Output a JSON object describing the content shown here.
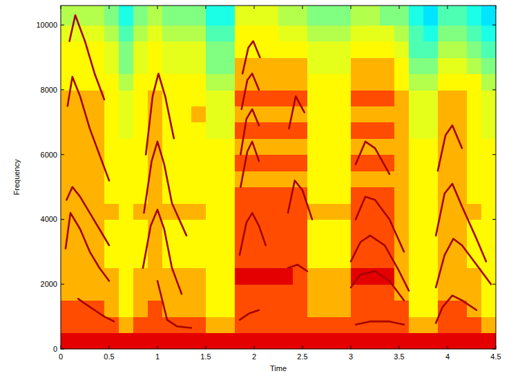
{
  "chart_data": {
    "type": "heatmap",
    "x_label": "Time",
    "y_label": "Frequency",
    "xlim": [
      0,
      4.5
    ],
    "ylim": [
      0,
      10600
    ],
    "xticks": [
      0,
      0.5,
      1,
      1.5,
      2,
      2.5,
      3,
      3.5,
      4,
      4.5
    ],
    "yticks": [
      0,
      2000,
      4000,
      6000,
      8000,
      10000
    ],
    "x_edges": [
      0,
      0.15,
      0.3,
      0.45,
      0.6,
      0.75,
      0.9,
      1.05,
      1.2,
      1.35,
      1.5,
      1.65,
      1.8,
      1.95,
      2.1,
      2.25,
      2.4,
      2.55,
      2.7,
      2.85,
      3,
      3.15,
      3.3,
      3.45,
      3.6,
      3.75,
      3.9,
      4.05,
      4.2,
      4.35,
      4.5
    ],
    "y_edges": [
      0,
      500,
      1000,
      1500,
      2000,
      2500,
      3000,
      3500,
      4000,
      4500,
      5000,
      5500,
      6000,
      6500,
      7000,
      7500,
      8000,
      8500,
      9000,
      9500,
      10000,
      10600
    ],
    "clim": [
      0,
      10
    ],
    "cells": [
      [
        9,
        9,
        9,
        9,
        9,
        9,
        9,
        9,
        9,
        9,
        9,
        9,
        9,
        9,
        9,
        9,
        9,
        9,
        9,
        9,
        9,
        9,
        9,
        9,
        9,
        9,
        9,
        9,
        9,
        9
      ],
      [
        8,
        8,
        8,
        8,
        7,
        8,
        8,
        8,
        8,
        8,
        7,
        7,
        8,
        8,
        8,
        8,
        8,
        8,
        8,
        8,
        8,
        8,
        8,
        8,
        7,
        7,
        8,
        8,
        8,
        7
      ],
      [
        8,
        8,
        8,
        7,
        6.3,
        7,
        8,
        7,
        7,
        7,
        6.3,
        6.3,
        8,
        8,
        8,
        8,
        8,
        7,
        7,
        7,
        8,
        8,
        8,
        8,
        6.3,
        6.3,
        8,
        8,
        7,
        6.3
      ],
      [
        7,
        7,
        7,
        7,
        6.3,
        7,
        7,
        7,
        7,
        7,
        6.3,
        6.3,
        8,
        8,
        8,
        8,
        8,
        7,
        7,
        7,
        8,
        8,
        8,
        7,
        6.3,
        6.3,
        7,
        7,
        7,
        6.3
      ],
      [
        7,
        7,
        7,
        7,
        6.3,
        7,
        7,
        7,
        7,
        7,
        6.3,
        6.3,
        9,
        9,
        9,
        9,
        8,
        7,
        7,
        7,
        9,
        9,
        9,
        7,
        6.3,
        6.3,
        7,
        7,
        7,
        6.3
      ],
      [
        7,
        7,
        7,
        6.3,
        6.3,
        6.3,
        7,
        6.3,
        6.3,
        6.3,
        6.3,
        6.3,
        8,
        8,
        8,
        8,
        8,
        6.3,
        6.3,
        6.3,
        8,
        8,
        8,
        7,
        6.3,
        6.3,
        7,
        7,
        6.3,
        6.3
      ],
      [
        7,
        7,
        7,
        6.3,
        6.3,
        6.3,
        7,
        6.3,
        6.3,
        6.3,
        6.3,
        6.3,
        8,
        8,
        8,
        8,
        8,
        6.3,
        6.3,
        6.3,
        8,
        8,
        8,
        7,
        6.3,
        6.3,
        7,
        7,
        6.3,
        6.3
      ],
      [
        7,
        7,
        7,
        6.3,
        6.3,
        6.3,
        7,
        6.3,
        6.3,
        6.3,
        6.3,
        6.3,
        8,
        8,
        8,
        8,
        8,
        6.3,
        6.3,
        6.3,
        8,
        8,
        8,
        7,
        6.3,
        6.3,
        7,
        7,
        6.3,
        6.3
      ],
      [
        7,
        7,
        7,
        7,
        6.3,
        7,
        7,
        7,
        7,
        7,
        6.3,
        6.3,
        8,
        8,
        8,
        8,
        8,
        7,
        7,
        7,
        8,
        8,
        8,
        7,
        6.3,
        6.3,
        7,
        7,
        7,
        6.3
      ],
      [
        7,
        7,
        7,
        6.3,
        6.3,
        6.3,
        7,
        6.3,
        6.3,
        6.3,
        6.3,
        6.3,
        8,
        8,
        8,
        8,
        8,
        6.3,
        6.3,
        6.3,
        8,
        8,
        8,
        7,
        6.3,
        6.3,
        7,
        7,
        6.3,
        6.3
      ],
      [
        7,
        7,
        7,
        6.3,
        6.3,
        6.3,
        7,
        6.3,
        6.3,
        6.3,
        6.3,
        6.3,
        7,
        7,
        7,
        7,
        7,
        6.3,
        6.3,
        6.3,
        7,
        7,
        7,
        7,
        6.3,
        6.3,
        7,
        7,
        6.3,
        6.3
      ],
      [
        7,
        7,
        7,
        6.3,
        6.3,
        6.3,
        7,
        6.3,
        6.3,
        6.3,
        6.3,
        6.3,
        8,
        8,
        8,
        8,
        8,
        6.3,
        6.3,
        6.3,
        8,
        8,
        8,
        7,
        6.3,
        6.3,
        7,
        7,
        6.3,
        6.3
      ],
      [
        7,
        7,
        7,
        6.3,
        6.3,
        6.3,
        7,
        6.3,
        6.3,
        6.3,
        6.3,
        6.3,
        7,
        7,
        7,
        7,
        7,
        6.3,
        6.3,
        6.3,
        7,
        7,
        7,
        7,
        6.3,
        6.3,
        7,
        7,
        6.3,
        6.3
      ],
      [
        7,
        7,
        7,
        6.3,
        6,
        6.3,
        7,
        6.3,
        6.3,
        6.3,
        6,
        6,
        8,
        8,
        8,
        8,
        8,
        6.3,
        6.3,
        6.3,
        8,
        8,
        8,
        7,
        6,
        6,
        7,
        7,
        6.3,
        6
      ],
      [
        7,
        7,
        7,
        6.3,
        6,
        6.3,
        7,
        6.3,
        6.3,
        7,
        6,
        6,
        7,
        7,
        7,
        7,
        7,
        6.3,
        6.3,
        6.3,
        7,
        7,
        7,
        7,
        6,
        6,
        7,
        7,
        6.3,
        6
      ],
      [
        7,
        7,
        7,
        6.3,
        6,
        6.3,
        7,
        6.3,
        6.3,
        6.3,
        6,
        6,
        8,
        8,
        8,
        8,
        8,
        6.3,
        6.3,
        6.3,
        8,
        8,
        8,
        7,
        6,
        6,
        7,
        7,
        6.3,
        6
      ],
      [
        6.3,
        6.3,
        6.3,
        6.3,
        5.5,
        6.3,
        6.3,
        6.3,
        6.3,
        6.3,
        5.5,
        5.5,
        7,
        7,
        7,
        7,
        7,
        6.3,
        6.3,
        6.3,
        7,
        7,
        7,
        6.3,
        5.5,
        5.5,
        6.3,
        6.3,
        6.3,
        5.5
      ],
      [
        6.3,
        6.3,
        6.3,
        6,
        5,
        6,
        6.3,
        6,
        6,
        6,
        5,
        5,
        7,
        7,
        7,
        7,
        7,
        6,
        6,
        6,
        7,
        7,
        7,
        6.3,
        5,
        5,
        6,
        6,
        5.5,
        5
      ],
      [
        6.3,
        6.3,
        6.3,
        6,
        5,
        6,
        6.3,
        6,
        6,
        6,
        5,
        5,
        6.3,
        6.3,
        6.3,
        6.3,
        6.3,
        6,
        6,
        6,
        6.3,
        6.3,
        6.3,
        6,
        4.5,
        4.5,
        5.5,
        5.5,
        5,
        4.5
      ],
      [
        6,
        6,
        6,
        5.5,
        4.5,
        5.5,
        6,
        5.5,
        5.5,
        5.5,
        4.5,
        4.5,
        6.3,
        6.3,
        6.3,
        6,
        6,
        5.5,
        5.5,
        5.5,
        6,
        6,
        6,
        5.5,
        4.5,
        4,
        5,
        5,
        4.5,
        4
      ],
      [
        5.5,
        5.5,
        5.5,
        5,
        4,
        5,
        5.5,
        5,
        5,
        5,
        4,
        4,
        6,
        6,
        6,
        5.5,
        5.5,
        5,
        5,
        5,
        5.5,
        5.5,
        5,
        5,
        4,
        3.5,
        4.5,
        4.5,
        4,
        3.5
      ]
    ],
    "series": [
      {
        "type": "line",
        "color": "#a50000",
        "x": [
          0.05,
          0.1,
          0.2,
          0.3,
          0.4,
          0.5
        ],
        "values": [
          3100,
          4200,
          3700,
          3000,
          2500,
          2100
        ]
      },
      {
        "type": "line",
        "color": "#a50000",
        "x": [
          0.06,
          0.12,
          0.2,
          0.3,
          0.4,
          0.5
        ],
        "values": [
          4600,
          5000,
          4700,
          4200,
          3700,
          3200
        ]
      },
      {
        "type": "line",
        "color": "#a50000",
        "x": [
          0.07,
          0.12,
          0.2,
          0.3,
          0.4,
          0.5
        ],
        "values": [
          7500,
          8400,
          7800,
          6800,
          6000,
          5200
        ]
      },
      {
        "type": "line",
        "color": "#a50000",
        "x": [
          0.09,
          0.15,
          0.25,
          0.35,
          0.45
        ],
        "values": [
          9500,
          10300,
          9500,
          8500,
          7700
        ]
      },
      {
        "type": "line",
        "color": "#a50000",
        "x": [
          0.18,
          0.25,
          0.35,
          0.45,
          0.55
        ],
        "values": [
          1550,
          1400,
          1200,
          1000,
          850
        ]
      },
      {
        "type": "line",
        "color": "#a50000",
        "x": [
          0.85,
          0.93,
          1.0,
          1.07,
          1.15,
          1.25
        ],
        "values": [
          2500,
          3800,
          4300,
          3700,
          2500,
          1700
        ]
      },
      {
        "type": "line",
        "color": "#a50000",
        "x": [
          0.86,
          0.94,
          1.0,
          1.07,
          1.15,
          1.3
        ],
        "values": [
          4200,
          5800,
          6400,
          5700,
          4500,
          3500
        ]
      },
      {
        "type": "line",
        "color": "#a50000",
        "x": [
          0.88,
          0.95,
          1.01,
          1.08,
          1.17
        ],
        "values": [
          6000,
          7800,
          8500,
          7800,
          6500
        ]
      },
      {
        "type": "line",
        "color": "#a50000",
        "x": [
          1.0,
          1.05,
          1.1,
          1.2,
          1.35
        ],
        "values": [
          2100,
          1500,
          900,
          700,
          650
        ]
      },
      {
        "type": "line",
        "color": "#a50000",
        "x": [
          1.85,
          1.92,
          1.98,
          2.05,
          2.12
        ],
        "values": [
          2900,
          3900,
          4200,
          3800,
          3200
        ]
      },
      {
        "type": "line",
        "color": "#a50000",
        "x": [
          1.86,
          1.93,
          1.98,
          2.05
        ],
        "values": [
          5000,
          6100,
          6400,
          5800
        ]
      },
      {
        "type": "line",
        "color": "#a50000",
        "x": [
          1.86,
          1.92,
          1.98,
          2.05
        ],
        "values": [
          6000,
          7100,
          7400,
          6900
        ]
      },
      {
        "type": "line",
        "color": "#a50000",
        "x": [
          1.87,
          1.93,
          1.98,
          2.05
        ],
        "values": [
          7400,
          8300,
          8500,
          8000
        ]
      },
      {
        "type": "line",
        "color": "#a50000",
        "x": [
          1.88,
          1.94,
          1.99,
          2.06
        ],
        "values": [
          8500,
          9300,
          9500,
          9000
        ]
      },
      {
        "type": "line",
        "color": "#a50000",
        "x": [
          1.85,
          1.95,
          2.05
        ],
        "values": [
          900,
          1100,
          1200
        ]
      },
      {
        "type": "line",
        "color": "#a50000",
        "x": [
          2.35,
          2.42,
          2.5,
          2.6
        ],
        "values": [
          4200,
          5200,
          4900,
          4000
        ]
      },
      {
        "type": "line",
        "color": "#a50000",
        "x": [
          2.36,
          2.43,
          2.52
        ],
        "values": [
          6800,
          7800,
          7300
        ]
      },
      {
        "type": "line",
        "color": "#a50000",
        "x": [
          2.35,
          2.45,
          2.55
        ],
        "values": [
          2500,
          2600,
          2400
        ]
      },
      {
        "type": "line",
        "color": "#a50000",
        "x": [
          3.0,
          3.1,
          3.2,
          3.35,
          3.5,
          3.6
        ],
        "values": [
          2700,
          3300,
          3500,
          3200,
          2400,
          1800
        ]
      },
      {
        "type": "line",
        "color": "#a50000",
        "x": [
          3.05,
          3.15,
          3.25,
          3.4,
          3.55
        ],
        "values": [
          4000,
          4700,
          4600,
          4000,
          3000
        ]
      },
      {
        "type": "line",
        "color": "#a50000",
        "x": [
          3.0,
          3.1,
          3.25,
          3.4,
          3.55
        ],
        "values": [
          1900,
          2300,
          2400,
          2100,
          1500
        ]
      },
      {
        "type": "line",
        "color": "#a50000",
        "x": [
          3.05,
          3.2,
          3.4,
          3.55
        ],
        "values": [
          750,
          850,
          850,
          750
        ]
      },
      {
        "type": "line",
        "color": "#a50000",
        "x": [
          3.05,
          3.15,
          3.25,
          3.4
        ],
        "values": [
          5700,
          6400,
          6200,
          5400
        ]
      },
      {
        "type": "line",
        "color": "#a50000",
        "x": [
          3.88,
          3.97,
          4.05,
          4.15,
          4.3,
          4.4
        ],
        "values": [
          3500,
          4800,
          5100,
          4400,
          3400,
          2700
        ]
      },
      {
        "type": "line",
        "color": "#a50000",
        "x": [
          3.88,
          3.97,
          4.06,
          4.15,
          4.3,
          4.45
        ],
        "values": [
          1900,
          2900,
          3400,
          3200,
          2600,
          2000
        ]
      },
      {
        "type": "line",
        "color": "#a50000",
        "x": [
          3.88,
          3.95,
          4.05,
          4.15,
          4.3
        ],
        "values": [
          800,
          1300,
          1650,
          1500,
          1200
        ]
      },
      {
        "type": "line",
        "color": "#a50000",
        "x": [
          3.9,
          3.98,
          4.05,
          4.15
        ],
        "values": [
          5500,
          6600,
          6900,
          6200
        ]
      }
    ]
  }
}
